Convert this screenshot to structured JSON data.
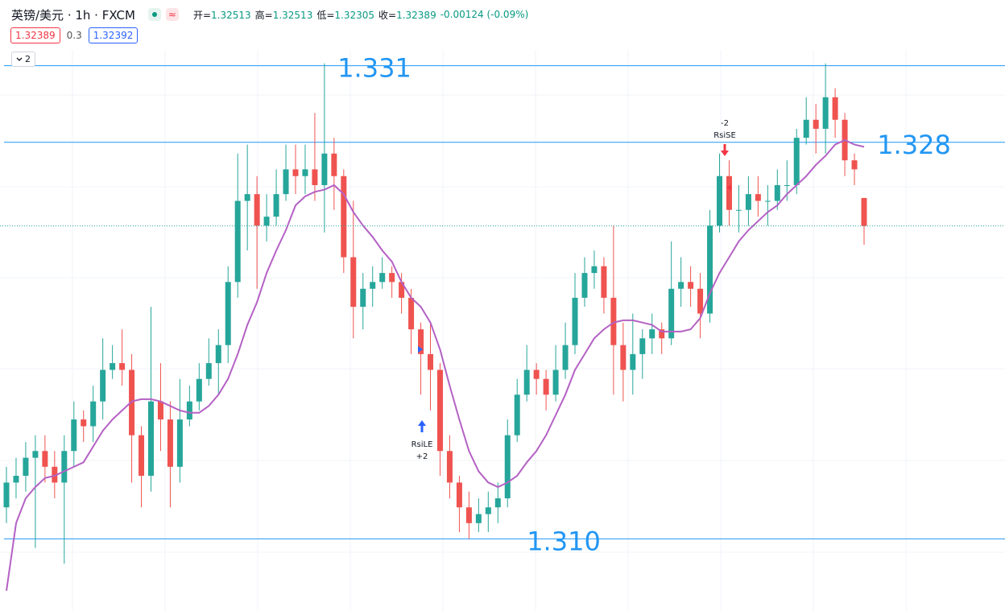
{
  "header": {
    "title": "英镑/美元 · 1h · FXCM",
    "ohlc": [
      {
        "label": "开=",
        "value": "1.32513"
      },
      {
        "label": "高=",
        "value": "1.32513"
      },
      {
        "label": "低=",
        "value": "1.32305"
      },
      {
        "label": "收=",
        "value": "1.32389"
      }
    ],
    "change": "-0.00124 (-0.09%)"
  },
  "quote": {
    "bid": "1.32389",
    "spread": "0.3",
    "ask": "1.32392"
  },
  "toolbar": {
    "collapse": "2"
  },
  "chart_data": {
    "type": "candlestick",
    "ylim": [
      1.3068,
      1.3317
    ],
    "up_color": "#26a69a",
    "down_color": "#ef5350",
    "ohlc": [
      [
        1.3114,
        1.3132,
        1.3107,
        1.3125
      ],
      [
        1.3125,
        1.3136,
        1.3118,
        1.3128
      ],
      [
        1.3128,
        1.3143,
        1.3121,
        1.3136
      ],
      [
        1.3136,
        1.3146,
        1.3096,
        1.3139
      ],
      [
        1.3139,
        1.3146,
        1.3125,
        1.3132
      ],
      [
        1.3132,
        1.3139,
        1.3118,
        1.3125
      ],
      [
        1.3125,
        1.3146,
        1.3089,
        1.3139
      ],
      [
        1.3139,
        1.3161,
        1.3132,
        1.3153
      ],
      [
        1.3153,
        1.3157,
        1.3143,
        1.315
      ],
      [
        1.315,
        1.3168,
        1.3143,
        1.3161
      ],
      [
        1.3161,
        1.3189,
        1.3153,
        1.3175
      ],
      [
        1.3175,
        1.3186,
        1.3171,
        1.3178
      ],
      [
        1.3178,
        1.3193,
        1.3168,
        1.3175
      ],
      [
        1.3175,
        1.3182,
        1.3125,
        1.3146
      ],
      [
        1.3146,
        1.315,
        1.3114,
        1.3128
      ],
      [
        1.3128,
        1.3203,
        1.3121,
        1.3161
      ],
      [
        1.3161,
        1.3178,
        1.3139,
        1.3153
      ],
      [
        1.3153,
        1.3161,
        1.3114,
        1.3132
      ],
      [
        1.3132,
        1.3171,
        1.3125,
        1.3153
      ],
      [
        1.3153,
        1.3168,
        1.315,
        1.3161
      ],
      [
        1.3161,
        1.3178,
        1.3157,
        1.3171
      ],
      [
        1.3171,
        1.3189,
        1.3168,
        1.3178
      ],
      [
        1.3178,
        1.3193,
        1.3164,
        1.3186
      ],
      [
        1.3186,
        1.3221,
        1.3178,
        1.3214
      ],
      [
        1.3214,
        1.3271,
        1.3207,
        1.325
      ],
      [
        1.325,
        1.3275,
        1.3228,
        1.3253
      ],
      [
        1.3253,
        1.3261,
        1.3211,
        1.3239
      ],
      [
        1.3239,
        1.3253,
        1.3232,
        1.3243
      ],
      [
        1.3243,
        1.3264,
        1.3239,
        1.3253
      ],
      [
        1.3253,
        1.3275,
        1.325,
        1.3264
      ],
      [
        1.3264,
        1.3275,
        1.3253,
        1.3261
      ],
      [
        1.3261,
        1.3275,
        1.3253,
        1.3264
      ],
      [
        1.3264,
        1.3289,
        1.325,
        1.3257
      ],
      [
        1.3257,
        1.3311,
        1.3236,
        1.3271
      ],
      [
        1.3271,
        1.3278,
        1.3246,
        1.3261
      ],
      [
        1.3261,
        1.3264,
        1.3218,
        1.3225
      ],
      [
        1.3225,
        1.325,
        1.3189,
        1.3203
      ],
      [
        1.3203,
        1.3218,
        1.3193,
        1.3211
      ],
      [
        1.3211,
        1.3221,
        1.3203,
        1.3214
      ],
      [
        1.3214,
        1.3225,
        1.3211,
        1.3218
      ],
      [
        1.3218,
        1.3221,
        1.3207,
        1.3214
      ],
      [
        1.3214,
        1.3218,
        1.32,
        1.3207
      ],
      [
        1.3207,
        1.3211,
        1.3182,
        1.3193
      ],
      [
        1.3193,
        1.3196,
        1.3164,
        1.3182
      ],
      [
        1.3182,
        1.3196,
        1.3157,
        1.3175
      ],
      [
        1.3175,
        1.3178,
        1.3128,
        1.3139
      ],
      [
        1.3139,
        1.3146,
        1.3118,
        1.3125
      ],
      [
        1.3125,
        1.3128,
        1.3103,
        1.3114
      ],
      [
        1.3114,
        1.3121,
        1.31,
        1.3107
      ],
      [
        1.3107,
        1.3118,
        1.3103,
        1.3111
      ],
      [
        1.3111,
        1.3121,
        1.3103,
        1.3114
      ],
      [
        1.3114,
        1.3125,
        1.3107,
        1.3118
      ],
      [
        1.3118,
        1.3153,
        1.3114,
        1.3146
      ],
      [
        1.3146,
        1.3171,
        1.3143,
        1.3164
      ],
      [
        1.3164,
        1.3186,
        1.3161,
        1.3175
      ],
      [
        1.3175,
        1.3178,
        1.3164,
        1.3171
      ],
      [
        1.3171,
        1.3175,
        1.3157,
        1.3164
      ],
      [
        1.3164,
        1.3186,
        1.3161,
        1.3175
      ],
      [
        1.3175,
        1.3196,
        1.3171,
        1.3186
      ],
      [
        1.3186,
        1.3218,
        1.3182,
        1.3207
      ],
      [
        1.3207,
        1.3225,
        1.3203,
        1.3218
      ],
      [
        1.3218,
        1.3228,
        1.3211,
        1.3221
      ],
      [
        1.3221,
        1.3225,
        1.32,
        1.3207
      ],
      [
        1.3207,
        1.3239,
        1.3164,
        1.3186
      ],
      [
        1.3186,
        1.3196,
        1.3161,
        1.3175
      ],
      [
        1.3175,
        1.32,
        1.3164,
        1.3182
      ],
      [
        1.3182,
        1.3193,
        1.3171,
        1.3189
      ],
      [
        1.3189,
        1.32,
        1.3182,
        1.3193
      ],
      [
        1.3193,
        1.3196,
        1.3182,
        1.3189
      ],
      [
        1.3189,
        1.3232,
        1.3186,
        1.3211
      ],
      [
        1.3211,
        1.3225,
        1.3203,
        1.3214
      ],
      [
        1.3214,
        1.3221,
        1.3203,
        1.3211
      ],
      [
        1.3211,
        1.3218,
        1.3189,
        1.32
      ],
      [
        1.32,
        1.3246,
        1.3196,
        1.3239
      ],
      [
        1.3239,
        1.3271,
        1.3236,
        1.3261
      ],
      [
        1.3261,
        1.3268,
        1.3239,
        1.3246
      ],
      [
        1.3246,
        1.3257,
        1.3236,
        1.3246
      ],
      [
        1.3246,
        1.3261,
        1.3239,
        1.3253
      ],
      [
        1.3253,
        1.3261,
        1.3243,
        1.325
      ],
      [
        1.325,
        1.3257,
        1.3239,
        1.325
      ],
      [
        1.325,
        1.3264,
        1.3246,
        1.3257
      ],
      [
        1.3257,
        1.3268,
        1.325,
        1.3257
      ],
      [
        1.3257,
        1.3282,
        1.3253,
        1.3278
      ],
      [
        1.3278,
        1.3296,
        1.3275,
        1.3286
      ],
      [
        1.3286,
        1.3293,
        1.3271,
        1.3282
      ],
      [
        1.3282,
        1.3311,
        1.3271,
        1.3296
      ],
      [
        1.3296,
        1.33,
        1.3278,
        1.3286
      ],
      [
        1.3286,
        1.3289,
        1.3261,
        1.3268
      ],
      [
        1.3268,
        1.3271,
        1.3257,
        1.3264
      ],
      [
        1.32513,
        1.32513,
        1.32305,
        1.32389
      ]
    ],
    "ma": {
      "color": "#b461c4",
      "values": [
        1.3077,
        1.3107,
        1.3118,
        1.3123,
        1.3127,
        1.3128,
        1.313,
        1.3132,
        1.3134,
        1.3141,
        1.3148,
        1.3153,
        1.3157,
        1.3161,
        1.3162,
        1.3162,
        1.3161,
        1.3159,
        1.3157,
        1.3156,
        1.3156,
        1.3159,
        1.3164,
        1.3171,
        1.3182,
        1.3195,
        1.3205,
        1.3218,
        1.3228,
        1.3237,
        1.3248,
        1.3252,
        1.3254,
        1.3255,
        1.3257,
        1.3253,
        1.3245,
        1.3239,
        1.3234,
        1.3228,
        1.3223,
        1.3214,
        1.3207,
        1.3203,
        1.3196,
        1.3184,
        1.3168,
        1.3153,
        1.3139,
        1.313,
        1.3125,
        1.3123,
        1.3125,
        1.3128,
        1.3134,
        1.3139,
        1.3146,
        1.3155,
        1.3164,
        1.3175,
        1.3182,
        1.3189,
        1.3193,
        1.3196,
        1.3197,
        1.3197,
        1.3196,
        1.3195,
        1.3192,
        1.3192,
        1.3192,
        1.3193,
        1.3198,
        1.3209,
        1.3218,
        1.3225,
        1.3232,
        1.3237,
        1.3241,
        1.3245,
        1.3248,
        1.3253,
        1.3257,
        1.3261,
        1.3266,
        1.327,
        1.3275,
        1.3277,
        1.3275,
        1.3274
      ]
    },
    "levels": [
      {
        "value": 1.331,
        "label": "1.331"
      },
      {
        "value": 1.3276,
        "label": "1.328"
      },
      {
        "value": 1.31,
        "label": "1.310"
      }
    ],
    "level_color": "#2196f3",
    "signals": [
      {
        "name": "RsiLE",
        "size": "+2"
      },
      {
        "name": "RsiSE",
        "size": "-2"
      }
    ]
  }
}
